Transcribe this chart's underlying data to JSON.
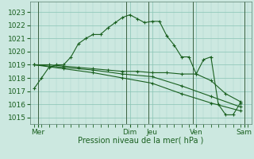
{
  "bg_color": "#cce8e0",
  "grid_major_color": "#88c4b4",
  "grid_minor_color": "#aad4c8",
  "line_color": "#1a6020",
  "tick_color": "#1a6020",
  "xlabel": "Pression niveau de la mer( hPa )",
  "xlabel_color": "#1a6020",
  "ylim": [
    1014.5,
    1023.8
  ],
  "yticks": [
    1015,
    1016,
    1017,
    1018,
    1019,
    1020,
    1021,
    1022,
    1023
  ],
  "xlim": [
    -0.5,
    29.5
  ],
  "day_labels": [
    "Mer",
    "Dim",
    "Jeu",
    "Ven",
    "Sam"
  ],
  "day_positions": [
    0.5,
    13.0,
    16.0,
    22.0,
    28.5
  ],
  "vline_positions": [
    0.5,
    12.5,
    15.5,
    21.5,
    28.5
  ],
  "series1_x": [
    0,
    1,
    2,
    3,
    4,
    5,
    6,
    7,
    8,
    9,
    10,
    11,
    12,
    13,
    14,
    15,
    16,
    17,
    18,
    19,
    20,
    21,
    22,
    23,
    24,
    25,
    26,
    27,
    28
  ],
  "series1_y": [
    1017.2,
    1018.0,
    1018.8,
    1019.0,
    1019.0,
    1019.6,
    1020.6,
    1021.0,
    1021.3,
    1021.3,
    1021.8,
    1022.2,
    1022.6,
    1022.8,
    1022.5,
    1022.2,
    1022.3,
    1022.3,
    1021.2,
    1020.5,
    1019.6,
    1019.6,
    1018.3,
    1019.4,
    1019.6,
    1016.0,
    1015.2,
    1015.2,
    1016.1
  ],
  "series2_x": [
    0,
    2,
    4,
    6,
    8,
    10,
    12,
    14,
    16,
    18,
    20,
    22,
    24,
    26,
    28
  ],
  "series2_y": [
    1019.0,
    1019.0,
    1018.9,
    1018.8,
    1018.7,
    1018.6,
    1018.5,
    1018.5,
    1018.4,
    1018.4,
    1018.3,
    1018.3,
    1017.8,
    1016.8,
    1016.2
  ],
  "series3_x": [
    0,
    4,
    8,
    12,
    16,
    20,
    24,
    28
  ],
  "series3_y": [
    1019.0,
    1018.8,
    1018.6,
    1018.3,
    1018.1,
    1017.4,
    1016.6,
    1015.8
  ],
  "series4_x": [
    0,
    4,
    8,
    12,
    16,
    20,
    24,
    28
  ],
  "series4_y": [
    1019.0,
    1018.7,
    1018.4,
    1018.0,
    1017.6,
    1016.8,
    1016.1,
    1015.5
  ]
}
